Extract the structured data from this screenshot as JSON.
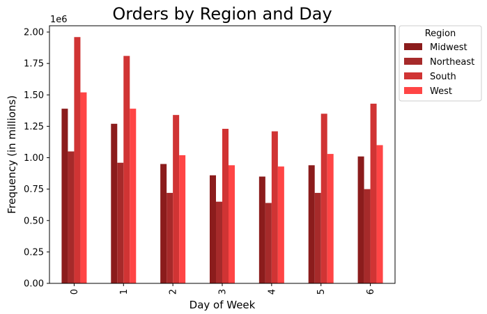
{
  "chart_data": {
    "type": "bar",
    "title": "Orders by Region and Day",
    "xlabel": "Day of Week",
    "ylabel": "Frequency (in millions)",
    "y_offset_label": "1e6",
    "categories": [
      "0",
      "1",
      "2",
      "3",
      "4",
      "5",
      "6"
    ],
    "ylim": [
      0,
      2.05
    ],
    "yticks": [
      "0.00",
      "0.25",
      "0.50",
      "0.75",
      "1.00",
      "1.25",
      "1.50",
      "1.75",
      "2.00"
    ],
    "grid": false,
    "legend": {
      "title": "Region",
      "placement": "outside-top-right"
    },
    "series": [
      {
        "name": "Midwest",
        "color": "#8b1c1c",
        "values": [
          1.39,
          1.27,
          0.95,
          0.86,
          0.85,
          0.94,
          1.01
        ]
      },
      {
        "name": "Northeast",
        "color": "#a62a2a",
        "values": [
          1.05,
          0.96,
          0.72,
          0.65,
          0.64,
          0.72,
          0.75
        ]
      },
      {
        "name": "South",
        "color": "#d03434",
        "values": [
          1.96,
          1.81,
          1.34,
          1.23,
          1.21,
          1.35,
          1.43
        ]
      },
      {
        "name": "West",
        "color": "#ff4545",
        "values": [
          1.52,
          1.39,
          1.02,
          0.94,
          0.93,
          1.03,
          1.1
        ]
      }
    ]
  }
}
